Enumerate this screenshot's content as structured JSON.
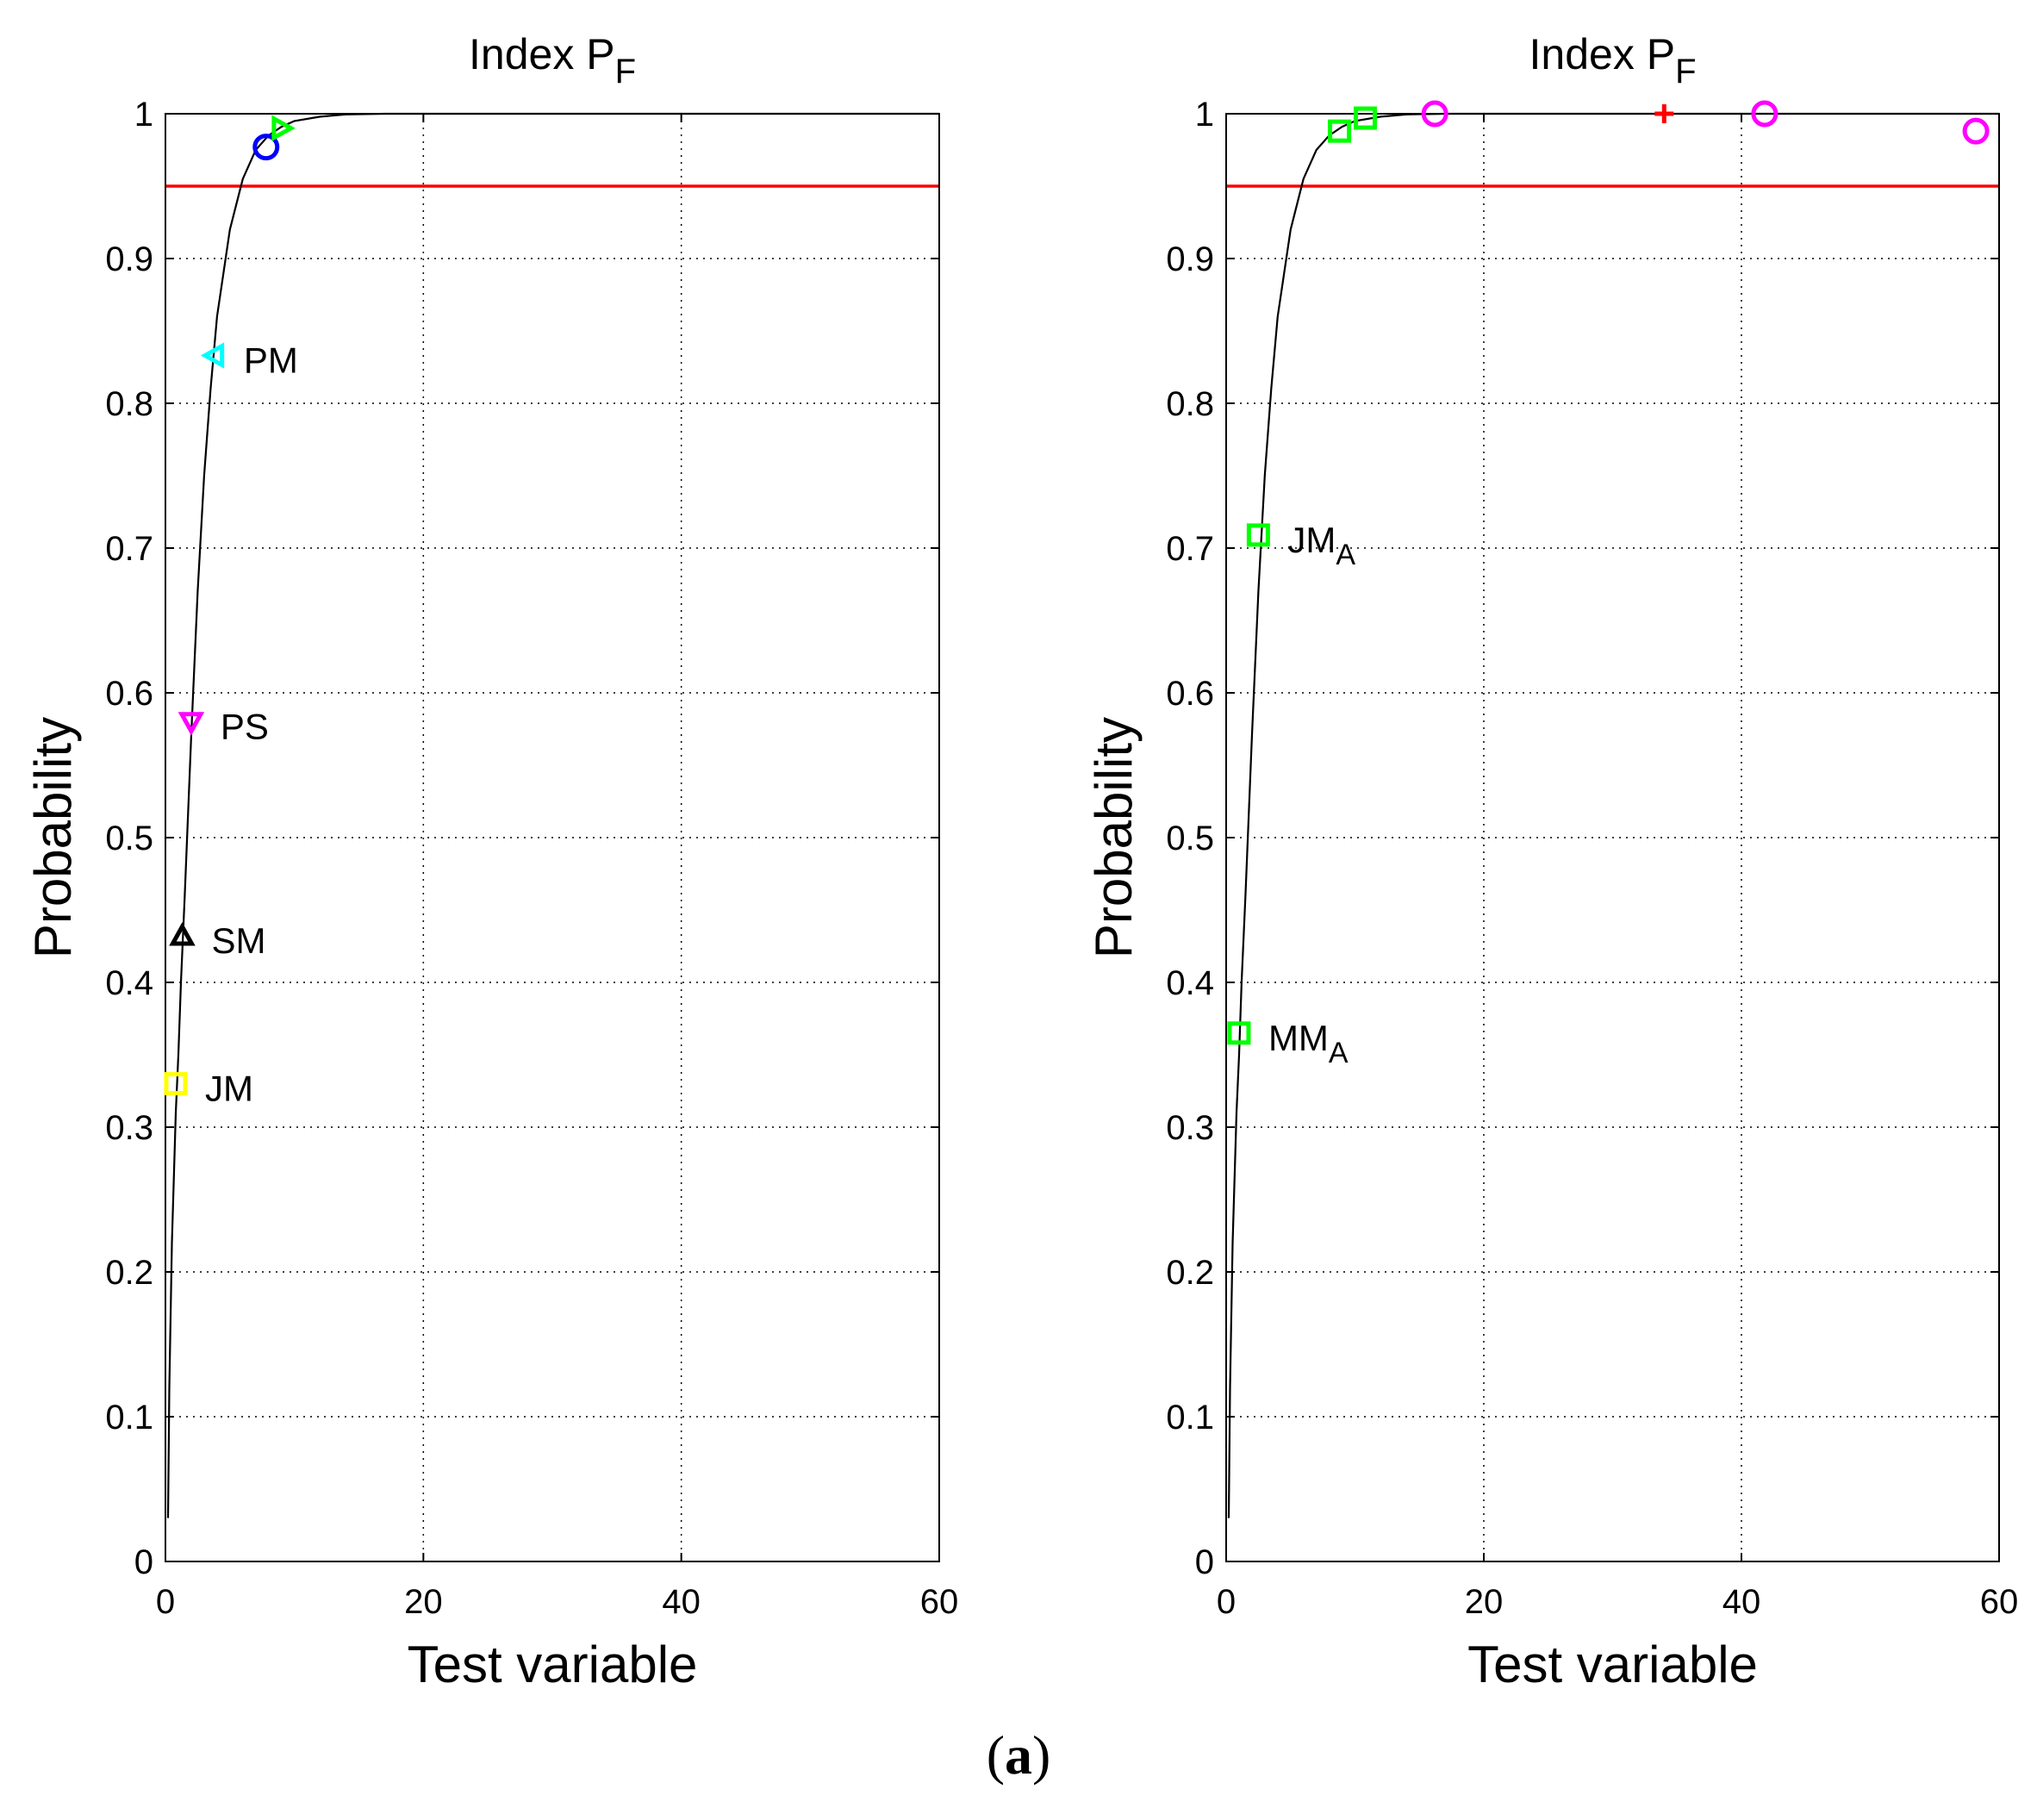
{
  "caption": {
    "open": "(",
    "label": "a",
    "close": ")"
  },
  "colors": {
    "threshold": "#ff0000",
    "curve": "#000000",
    "blue": "#0000ff",
    "green": "#00ff00",
    "cyan": "#00ffff",
    "magenta": "#ff00ff",
    "black": "#000000",
    "yellow": "#ffff00",
    "red": "#ff0000"
  },
  "chart_data": [
    {
      "type": "line",
      "title": "Index P",
      "title_sub": "F",
      "xlabel": "Test variable",
      "ylabel": "Probability",
      "xlim": [
        0,
        60
      ],
      "ylim": [
        0,
        1
      ],
      "xticks": [
        0,
        20,
        40,
        60
      ],
      "yticks": [
        0,
        0.1,
        0.2,
        0.3,
        0.4,
        0.5,
        0.6,
        0.7,
        0.8,
        0.9,
        1
      ],
      "grid": true,
      "threshold": 0.95,
      "cdf_x": [
        0.2,
        0.3,
        0.5,
        0.8,
        1.0,
        1.2,
        1.5,
        2.0,
        2.5,
        3.0,
        3.5,
        4.0,
        5.0,
        6.0,
        7.0,
        8.0,
        9.0,
        10.0,
        12.0,
        14.0,
        17.0
      ],
      "cdf_y": [
        0.03,
        0.12,
        0.22,
        0.31,
        0.35,
        0.4,
        0.46,
        0.57,
        0.67,
        0.75,
        0.81,
        0.86,
        0.92,
        0.955,
        0.975,
        0.985,
        0.991,
        0.995,
        0.998,
        0.9995,
        1.0
      ],
      "points": [
        {
          "marker": "circle",
          "color": "blue",
          "x": 7.8,
          "y": 0.977,
          "label": ""
        },
        {
          "marker": "triangle-right",
          "color": "green",
          "x": 9.0,
          "y": 0.99,
          "label": ""
        },
        {
          "marker": "triangle-left",
          "color": "cyan",
          "x": 3.8,
          "y": 0.833,
          "label": "PM"
        },
        {
          "marker": "triangle-down",
          "color": "magenta",
          "x": 2.0,
          "y": 0.58,
          "label": "PS"
        },
        {
          "marker": "triangle-up",
          "color": "black",
          "x": 1.3,
          "y": 0.432,
          "label": "SM"
        },
        {
          "marker": "square",
          "color": "yellow",
          "x": 0.8,
          "y": 0.33,
          "label": "JM"
        }
      ]
    },
    {
      "type": "line",
      "title": "Index P",
      "title_sub": "F",
      "xlabel": "Test variable",
      "ylabel": "Probability",
      "xlim": [
        0,
        60
      ],
      "ylim": [
        0,
        1
      ],
      "xticks": [
        0,
        20,
        40,
        60
      ],
      "yticks": [
        0,
        0.1,
        0.2,
        0.3,
        0.4,
        0.5,
        0.6,
        0.7,
        0.8,
        0.9,
        1
      ],
      "grid": true,
      "threshold": 0.95,
      "cdf_x": [
        0.2,
        0.3,
        0.5,
        0.8,
        1.0,
        1.2,
        1.5,
        2.0,
        2.5,
        3.0,
        3.5,
        4.0,
        5.0,
        6.0,
        7.0,
        8.0,
        9.0,
        10.0,
        12.0,
        14.0,
        17.0
      ],
      "cdf_y": [
        0.03,
        0.12,
        0.22,
        0.31,
        0.35,
        0.4,
        0.46,
        0.57,
        0.67,
        0.75,
        0.81,
        0.86,
        0.92,
        0.955,
        0.975,
        0.985,
        0.991,
        0.995,
        0.998,
        0.9995,
        1.0
      ],
      "points": [
        {
          "marker": "square",
          "color": "green",
          "x": 8.8,
          "y": 0.988,
          "label": ""
        },
        {
          "marker": "square",
          "color": "green",
          "x": 10.8,
          "y": 0.997,
          "label": ""
        },
        {
          "marker": "circle",
          "color": "magenta",
          "x": 16.2,
          "y": 1.0,
          "label": ""
        },
        {
          "marker": "plus",
          "color": "red",
          "x": 34.0,
          "y": 1.0,
          "label": ""
        },
        {
          "marker": "circle",
          "color": "magenta",
          "x": 41.8,
          "y": 1.0,
          "label": ""
        },
        {
          "marker": "circle",
          "color": "magenta",
          "x": 58.2,
          "y": 0.988,
          "label": ""
        },
        {
          "marker": "square",
          "color": "green",
          "x": 2.5,
          "y": 0.709,
          "label": "JM",
          "label_sub": "A"
        },
        {
          "marker": "square",
          "color": "green",
          "x": 1.0,
          "y": 0.365,
          "label": "MM",
          "label_sub": "A"
        }
      ]
    }
  ]
}
